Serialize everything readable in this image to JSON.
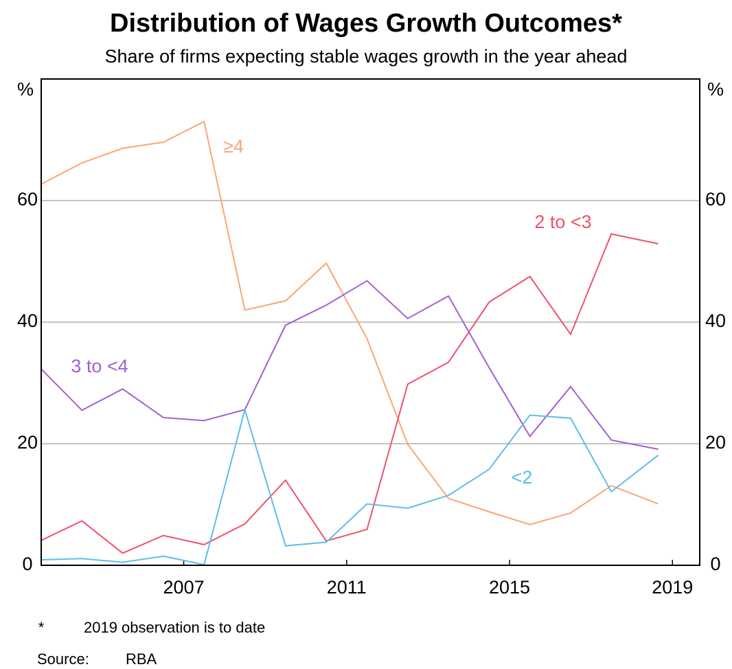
{
  "chart_data": {
    "type": "line",
    "title": "Distribution of Wages Growth Outcomes*",
    "subtitle": "Share of firms expecting stable wages growth in the year ahead",
    "y_unit": "%",
    "footnote": {
      "marker": "*",
      "text": "2019 observation is to date"
    },
    "source": {
      "label": "Source:",
      "text": "RBA"
    },
    "x": [
      2004,
      2005,
      2006,
      2007,
      2008,
      2009,
      2010,
      2011,
      2012,
      2013,
      2014,
      2015,
      2016,
      2017,
      2018,
      2019.15
    ],
    "xlim": [
      2004,
      2020.17
    ],
    "xticks": [
      {
        "value": 2007.5,
        "label": "2007"
      },
      {
        "value": 2011.5,
        "label": "2011"
      },
      {
        "value": 2015.5,
        "label": "2015"
      },
      {
        "value": 2019.5,
        "label": "2019"
      }
    ],
    "ylim": [
      0,
      80
    ],
    "yticks": [
      0,
      20,
      40,
      60
    ],
    "grid": true,
    "series": [
      {
        "name": "≥4",
        "color": "#f9a676",
        "values": [
          62.7,
          66.2,
          68.6,
          69.6,
          73.0,
          42.0,
          43.5,
          49.7,
          37.3,
          19.9,
          11.0,
          8.8,
          6.7,
          8.6,
          13.1,
          10.1
        ]
      },
      {
        "name": "2 to <3",
        "color": "#f0506e",
        "values": [
          4.1,
          7.3,
          2.0,
          4.9,
          3.4,
          6.8,
          14.0,
          4.0,
          5.9,
          29.8,
          33.4,
          43.3,
          47.5,
          38.0,
          54.5,
          52.9
        ]
      },
      {
        "name": "3 to <4",
        "color": "#a25fd3",
        "values": [
          32.3,
          25.5,
          29.0,
          24.3,
          23.8,
          25.6,
          39.5,
          42.8,
          46.8,
          40.6,
          44.3,
          32.5,
          21.2,
          29.4,
          20.6,
          19.1
        ]
      },
      {
        "name": "<2",
        "color": "#5bbfe6",
        "values": [
          0.9,
          1.1,
          0.5,
          1.5,
          0.1,
          25.6,
          3.2,
          3.8,
          10.1,
          9.4,
          11.5,
          15.8,
          24.7,
          24.2,
          12.1,
          18.1
        ]
      }
    ]
  }
}
